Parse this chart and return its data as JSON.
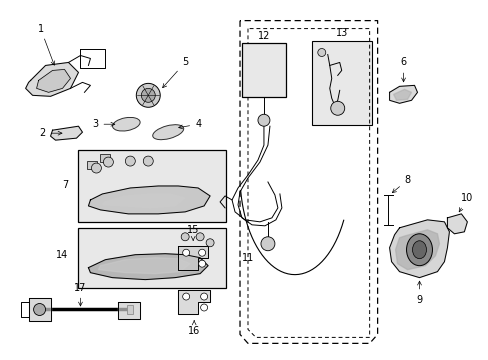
{
  "bg_color": "#ffffff",
  "figsize": [
    4.89,
    3.6
  ],
  "dpi": 100,
  "black": "#000000",
  "gray_fill": "#cccccc",
  "box_fill": "#e8e8e8",
  "line_width": 0.7
}
